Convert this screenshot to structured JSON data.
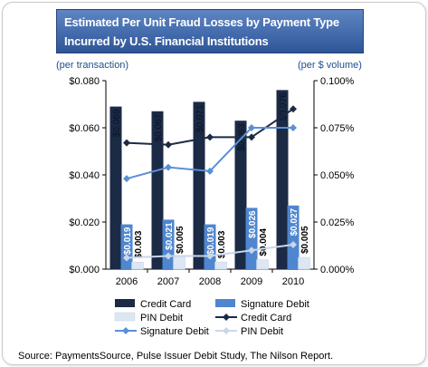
{
  "title": {
    "line1": "Estimated Per Unit Fraud Losses  by Payment Type",
    "line2": "Incurred by U.S. Financial  Institutions"
  },
  "left_unit": "(per transaction)",
  "right_unit": "(per $ volume)",
  "source": "Source: PaymentsSource, Pulse Issuer Debit Study, The Nilson Report.",
  "chart_data": {
    "type": "bar",
    "categories": [
      "2006",
      "2007",
      "2008",
      "2009",
      "2010"
    ],
    "y_left": {
      "ylim": [
        0,
        0.08
      ],
      "ticks": [
        "$0.000",
        "$0.020",
        "$0.040",
        "$0.060",
        "$0.080"
      ]
    },
    "y_right": {
      "ylim": [
        0,
        0.1
      ],
      "ticks": [
        "0.000%",
        "0.025%",
        "0.050%",
        "0.075%",
        "0.100%"
      ]
    },
    "bar_series": [
      {
        "name": "Credit Card",
        "color": "#1b2a45",
        "values": [
          0.069,
          0.067,
          0.071,
          0.063,
          0.076
        ],
        "labels": [
          "$0.069",
          "$0.067",
          "$0.071",
          "$0.063",
          "$0.076"
        ]
      },
      {
        "name": "Signature Debit",
        "color": "#4f86cf",
        "values": [
          0.019,
          0.021,
          0.019,
          0.026,
          0.027
        ],
        "labels": [
          "$0.019",
          "$0.021",
          "$0.019",
          "$0.026",
          "$0.027"
        ]
      },
      {
        "name": "PIN Debit",
        "color": "#dde7f4",
        "values": [
          0.003,
          0.005,
          0.003,
          0.004,
          0.005
        ],
        "labels": [
          "$0.003",
          "$0.005",
          "$0.003",
          "$0.004",
          "$0.005"
        ]
      }
    ],
    "line_series": [
      {
        "name": "Credit Card",
        "color": "#1b2a45",
        "values": [
          0.067,
          0.066,
          0.07,
          0.07,
          0.085
        ]
      },
      {
        "name": "Signature Debit",
        "color": "#5b8fd6",
        "values": [
          0.048,
          0.054,
          0.052,
          0.075,
          0.075
        ]
      },
      {
        "name": "PIN Debit",
        "color": "#c9d7ea",
        "values": [
          0.006,
          0.007,
          0.007,
          0.01,
          0.013
        ]
      }
    ],
    "legend": [
      {
        "name": "Credit Card",
        "kind": "bar",
        "color": "#1b2a45"
      },
      {
        "name": "Signature Debit",
        "kind": "bar",
        "color": "#4f86cf"
      },
      {
        "name": "PIN Debit",
        "kind": "bar",
        "color": "#dde7f4"
      },
      {
        "name": "Credit Card",
        "kind": "line",
        "color": "#1b2a45"
      },
      {
        "name": "Signature Debit",
        "kind": "line",
        "color": "#5b8fd6"
      },
      {
        "name": "PIN Debit",
        "kind": "line",
        "color": "#c9d7ea"
      }
    ],
    "grid": false,
    "legend_position": "bottom"
  }
}
